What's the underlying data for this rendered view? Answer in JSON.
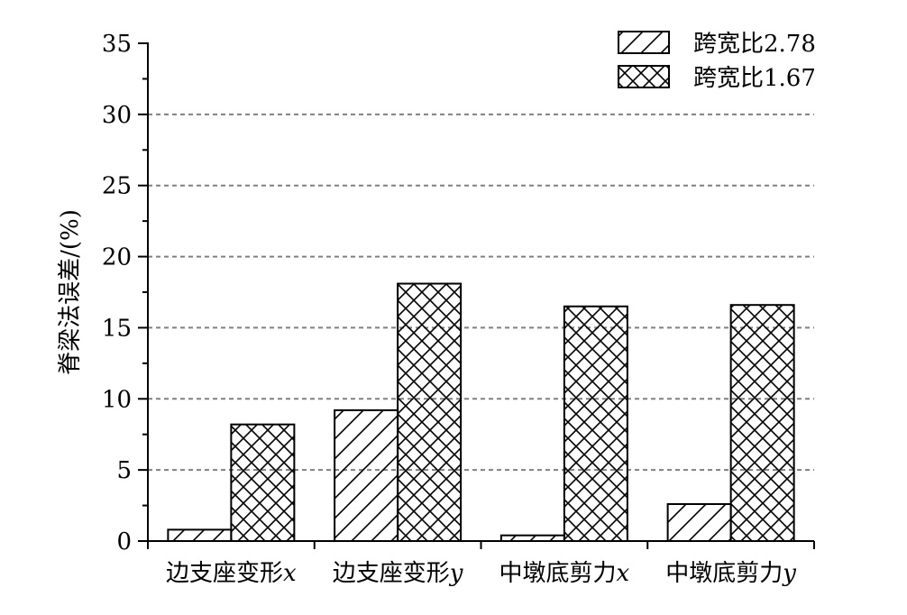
{
  "chart_data": {
    "type": "bar",
    "title": "",
    "xlabel": "",
    "ylabel": "脊梁法误差/(%)",
    "ylim": [
      0,
      35
    ],
    "yticks": [
      0,
      5,
      10,
      15,
      20,
      25,
      30,
      35
    ],
    "grid": true,
    "legend_position": "top-right",
    "categories": [
      {
        "text": "边支座变形",
        "var": "x"
      },
      {
        "text": "边支座变形",
        "var": "y"
      },
      {
        "text": "中墩底剪力",
        "var": "x"
      },
      {
        "text": "中墩底剪力",
        "var": "y"
      }
    ],
    "series": [
      {
        "name": "跨宽比2.78",
        "pattern": "hatch-diagonal",
        "values": [
          0.8,
          9.2,
          0.4,
          2.6
        ]
      },
      {
        "name": "跨宽比1.67",
        "pattern": "hatch-cross",
        "values": [
          8.2,
          18.1,
          16.5,
          16.6
        ]
      }
    ],
    "colors": {
      "stroke": "#000000",
      "grid": "#808080",
      "background": "#ffffff"
    }
  }
}
